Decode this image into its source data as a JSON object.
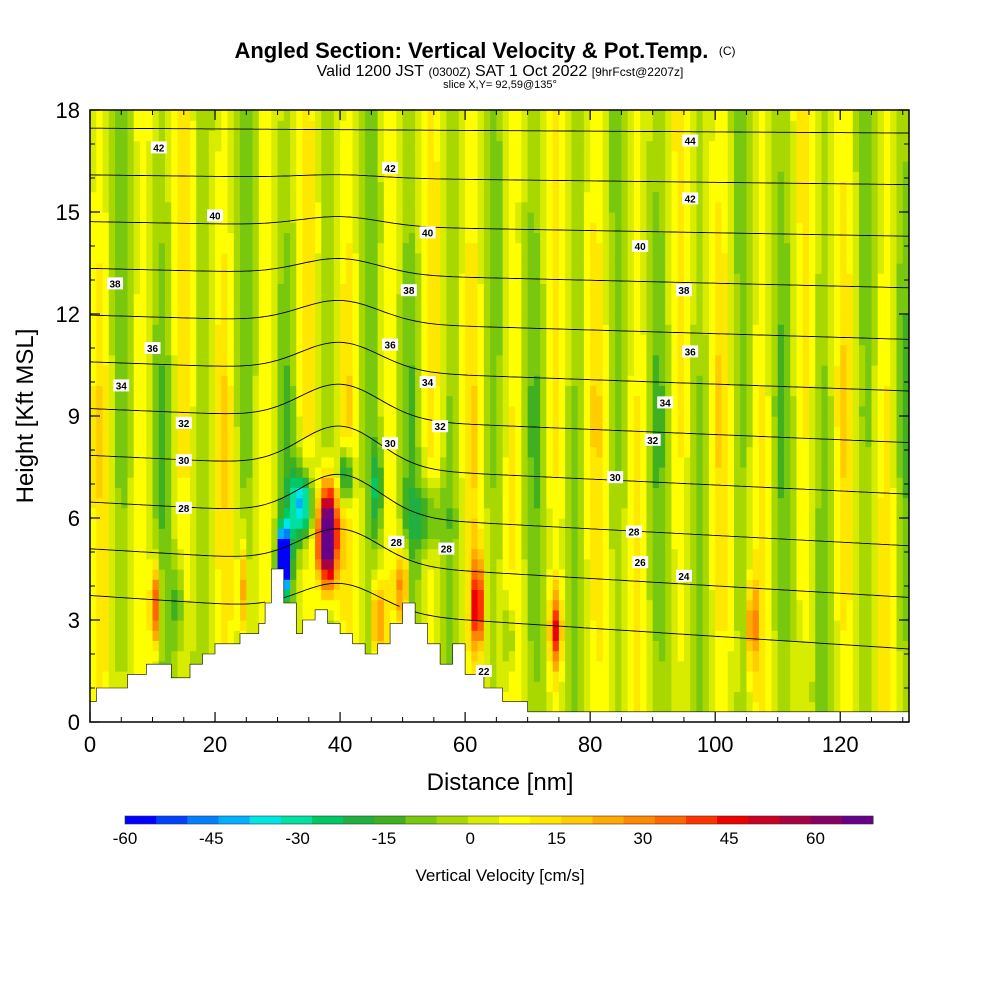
{
  "chart_data": {
    "type": "heatmap",
    "title": "Angled Section: Vertical Velocity & Pot.Temp.",
    "title_suffix": "(C)",
    "subtitle_parts": [
      "Valid 1200 JST",
      "(0300Z)",
      "SAT 1 Oct 2022",
      "[9hrFcst@2207z]"
    ],
    "slice_text": "slice X,Y= 92,59@135°",
    "xlabel": "Distance [nm]",
    "ylabel": "Height [Kft MSL]",
    "xlim": [
      0,
      131
    ],
    "ylim": [
      0,
      18
    ],
    "x_ticks": [
      "0",
      "20",
      "40",
      "60",
      "80",
      "100",
      "120"
    ],
    "y_ticks": [
      "0",
      "3",
      "6",
      "9",
      "12",
      "15",
      "18"
    ],
    "colorbar": {
      "label": "Vertical Velocity [cm/s]",
      "range": [
        -60,
        70
      ],
      "ticks": [
        "-60",
        "-45",
        "-30",
        "-15",
        "0",
        "15",
        "30",
        "45",
        "60"
      ],
      "colors": [
        "#0000ff",
        "#0040ff",
        "#0080ff",
        "#00b0ff",
        "#00e5e5",
        "#00e0a0",
        "#00c864",
        "#20b040",
        "#40b020",
        "#78c810",
        "#a8d800",
        "#d8ec00",
        "#ffff00",
        "#ffe800",
        "#ffcc00",
        "#ffaa00",
        "#ff8800",
        "#ff6600",
        "#ff3300",
        "#ee0000",
        "#cc0022",
        "#aa0044",
        "#880066",
        "#660088"
      ]
    },
    "terrain_profile": [
      [
        0,
        0.6
      ],
      [
        1,
        1.0
      ],
      [
        6,
        1.4
      ],
      [
        9,
        1.7
      ],
      [
        13,
        1.3
      ],
      [
        16,
        1.7
      ],
      [
        18,
        2.0
      ],
      [
        20,
        2.3
      ],
      [
        24,
        2.6
      ],
      [
        27,
        2.9
      ],
      [
        28,
        3.5
      ],
      [
        29,
        4.5
      ],
      [
        31,
        3.5
      ],
      [
        33,
        2.6
      ],
      [
        34,
        3.0
      ],
      [
        36,
        3.3
      ],
      [
        38,
        2.9
      ],
      [
        40,
        2.6
      ],
      [
        42,
        2.3
      ],
      [
        44,
        2.0
      ],
      [
        46,
        2.3
      ],
      [
        48,
        2.9
      ],
      [
        50,
        3.5
      ],
      [
        52,
        2.9
      ],
      [
        54,
        2.3
      ],
      [
        56,
        1.7
      ],
      [
        58,
        2.3
      ],
      [
        60,
        1.4
      ],
      [
        63,
        1.0
      ],
      [
        66,
        0.6
      ],
      [
        70,
        0.3
      ],
      [
        131,
        0.3
      ]
    ],
    "theta_contours": [
      {
        "value": "24",
        "labels": [
          [
            95,
            4.3
          ]
        ]
      },
      {
        "value": "26",
        "labels": [
          [
            88,
            4.7
          ]
        ]
      },
      {
        "value": "28",
        "labels": [
          [
            15,
            6.3
          ],
          [
            49,
            5.3
          ],
          [
            57,
            5.1
          ],
          [
            87,
            5.6
          ]
        ]
      },
      {
        "value": "30",
        "labels": [
          [
            15,
            7.7
          ],
          [
            48,
            8.2
          ],
          [
            84,
            7.2
          ]
        ]
      },
      {
        "value": "32",
        "labels": [
          [
            15,
            8.8
          ],
          [
            56,
            8.7
          ],
          [
            90,
            8.3
          ]
        ]
      },
      {
        "value": "34",
        "labels": [
          [
            5,
            9.9
          ],
          [
            54,
            10.0
          ],
          [
            92,
            9.4
          ]
        ]
      },
      {
        "value": "36",
        "labels": [
          [
            10,
            11.0
          ],
          [
            48,
            11.1
          ],
          [
            96,
            10.9
          ]
        ]
      },
      {
        "value": "38",
        "labels": [
          [
            4,
            12.9
          ],
          [
            51,
            12.7
          ],
          [
            95,
            12.7
          ]
        ]
      },
      {
        "value": "40",
        "labels": [
          [
            20,
            14.9
          ],
          [
            54,
            14.4
          ],
          [
            88,
            14.0
          ]
        ]
      },
      {
        "value": "42",
        "labels": [
          [
            11,
            16.9
          ],
          [
            48,
            16.3
          ],
          [
            96,
            15.4
          ]
        ]
      },
      {
        "value": "44",
        "labels": [
          [
            96,
            17.1
          ]
        ]
      },
      {
        "value": "22",
        "labels": [
          [
            63,
            1.5
          ]
        ]
      }
    ]
  }
}
